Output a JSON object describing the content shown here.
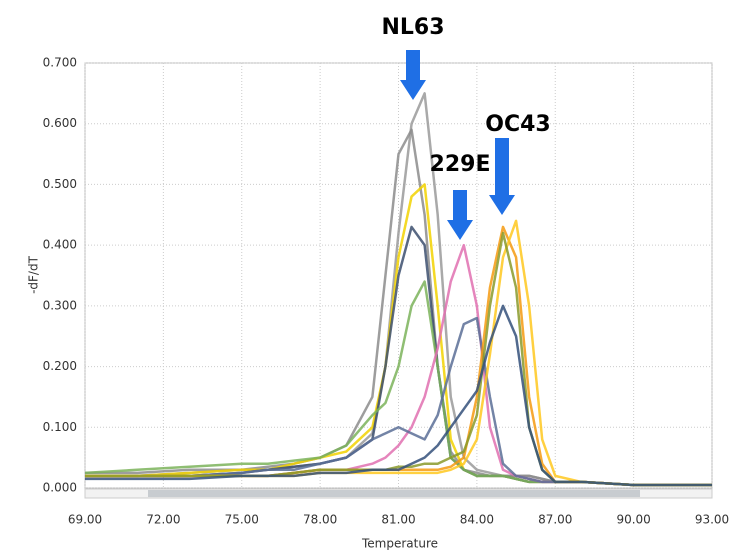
{
  "chart_data": {
    "type": "line",
    "xlabel": "Temperature",
    "ylabel": "-dF/dT",
    "annotations": [
      "NL63",
      "229E",
      "OC43"
    ],
    "x": [
      69,
      71,
      73,
      75,
      76,
      77,
      78,
      79,
      80,
      80.5,
      81,
      81.5,
      82,
      82.5,
      83,
      83.5,
      84,
      84.5,
      85,
      85.5,
      86,
      86.5,
      87,
      88,
      90,
      93
    ],
    "xlim": [
      69,
      93
    ],
    "xticks": [
      {
        "value": 69,
        "label": "69.00"
      },
      {
        "value": 72,
        "label": "72.00"
      },
      {
        "value": 75,
        "label": "75.00"
      },
      {
        "value": 78,
        "label": "78.00"
      },
      {
        "value": 81,
        "label": "81.00"
      },
      {
        "value": 84,
        "label": "84.00"
      },
      {
        "value": 87,
        "label": "87.00"
      },
      {
        "value": 90,
        "label": "90.00"
      },
      {
        "value": 93,
        "label": "93.00"
      }
    ],
    "ylim": [
      0,
      0.7
    ],
    "yticks": [
      {
        "value": 0,
        "label": "0.000"
      },
      {
        "value": 0.1,
        "label": "0.100"
      },
      {
        "value": 0.2,
        "label": "0.200"
      },
      {
        "value": 0.3,
        "label": "0.300"
      },
      {
        "value": 0.4,
        "label": "0.400"
      },
      {
        "value": 0.5,
        "label": "0.500"
      },
      {
        "value": 0.6,
        "label": "0.600"
      },
      {
        "value": 0.7,
        "label": "0.700"
      }
    ],
    "grid": true,
    "series": [
      {
        "color": "#9a9a9a",
        "values": [
          0.02,
          0.02,
          0.025,
          0.03,
          0.03,
          0.035,
          0.04,
          0.05,
          0.09,
          0.2,
          0.42,
          0.6,
          0.65,
          0.45,
          0.15,
          0.05,
          0.03,
          0.025,
          0.02,
          0.02,
          0.02,
          0.015,
          0.01,
          0.01,
          0.005,
          0.005
        ]
      },
      {
        "color": "#8c8c8c",
        "values": [
          0.025,
          0.025,
          0.03,
          0.03,
          0.035,
          0.04,
          0.05,
          0.07,
          0.15,
          0.35,
          0.55,
          0.59,
          0.45,
          0.2,
          0.06,
          0.03,
          0.025,
          0.02,
          0.02,
          0.02,
          0.02,
          0.015,
          0.01,
          0.01,
          0.005,
          0.005
        ]
      },
      {
        "color": "#f2d200",
        "values": [
          0.02,
          0.02,
          0.025,
          0.03,
          0.03,
          0.04,
          0.05,
          0.06,
          0.1,
          0.2,
          0.38,
          0.48,
          0.5,
          0.3,
          0.08,
          0.03,
          0.02,
          0.02,
          0.02,
          0.015,
          0.01,
          0.01,
          0.01,
          0.01,
          0.005,
          0.005
        ]
      },
      {
        "color": "#3c4f6e",
        "values": [
          0.02,
          0.02,
          0.02,
          0.025,
          0.03,
          0.035,
          0.04,
          0.05,
          0.08,
          0.2,
          0.35,
          0.43,
          0.4,
          0.2,
          0.05,
          0.03,
          0.02,
          0.02,
          0.02,
          0.015,
          0.01,
          0.01,
          0.01,
          0.01,
          0.005,
          0.005
        ]
      },
      {
        "color": "#7bb35a",
        "values": [
          0.025,
          0.03,
          0.035,
          0.04,
          0.04,
          0.045,
          0.05,
          0.07,
          0.12,
          0.14,
          0.2,
          0.3,
          0.34,
          0.2,
          0.05,
          0.03,
          0.02,
          0.02,
          0.02,
          0.015,
          0.01,
          0.01,
          0.01,
          0.01,
          0.005,
          0.005
        ]
      },
      {
        "color": "#e070b0",
        "values": [
          0.02,
          0.02,
          0.02,
          0.02,
          0.02,
          0.025,
          0.03,
          0.03,
          0.04,
          0.05,
          0.07,
          0.1,
          0.15,
          0.23,
          0.34,
          0.4,
          0.3,
          0.1,
          0.03,
          0.02,
          0.015,
          0.01,
          0.01,
          0.01,
          0.005,
          0.005
        ]
      },
      {
        "color": "#5a6f96",
        "values": [
          0.02,
          0.02,
          0.02,
          0.025,
          0.03,
          0.03,
          0.04,
          0.05,
          0.08,
          0.09,
          0.1,
          0.09,
          0.08,
          0.12,
          0.2,
          0.27,
          0.28,
          0.15,
          0.04,
          0.02,
          0.015,
          0.01,
          0.01,
          0.01,
          0.005,
          0.005
        ]
      },
      {
        "color": "#f59a10",
        "values": [
          0.02,
          0.02,
          0.02,
          0.02,
          0.02,
          0.025,
          0.03,
          0.03,
          0.03,
          0.03,
          0.03,
          0.03,
          0.03,
          0.03,
          0.035,
          0.05,
          0.15,
          0.33,
          0.43,
          0.38,
          0.15,
          0.04,
          0.01,
          0.01,
          0.005,
          0.005
        ]
      },
      {
        "color": "#ffc81e",
        "values": [
          0.02,
          0.02,
          0.02,
          0.02,
          0.02,
          0.02,
          0.025,
          0.025,
          0.025,
          0.025,
          0.025,
          0.025,
          0.025,
          0.025,
          0.03,
          0.04,
          0.08,
          0.22,
          0.38,
          0.44,
          0.3,
          0.08,
          0.02,
          0.01,
          0.005,
          0.005
        ]
      },
      {
        "color": "#8a9a2a",
        "values": [
          0.02,
          0.02,
          0.02,
          0.02,
          0.02,
          0.025,
          0.03,
          0.03,
          0.03,
          0.03,
          0.035,
          0.035,
          0.04,
          0.04,
          0.05,
          0.06,
          0.12,
          0.3,
          0.42,
          0.33,
          0.1,
          0.03,
          0.01,
          0.01,
          0.005,
          0.005
        ]
      },
      {
        "color": "#34507a",
        "values": [
          0.015,
          0.015,
          0.015,
          0.02,
          0.02,
          0.02,
          0.025,
          0.025,
          0.03,
          0.03,
          0.03,
          0.04,
          0.05,
          0.07,
          0.1,
          0.13,
          0.16,
          0.24,
          0.3,
          0.25,
          0.1,
          0.03,
          0.01,
          0.01,
          0.005,
          0.005
        ]
      }
    ]
  }
}
